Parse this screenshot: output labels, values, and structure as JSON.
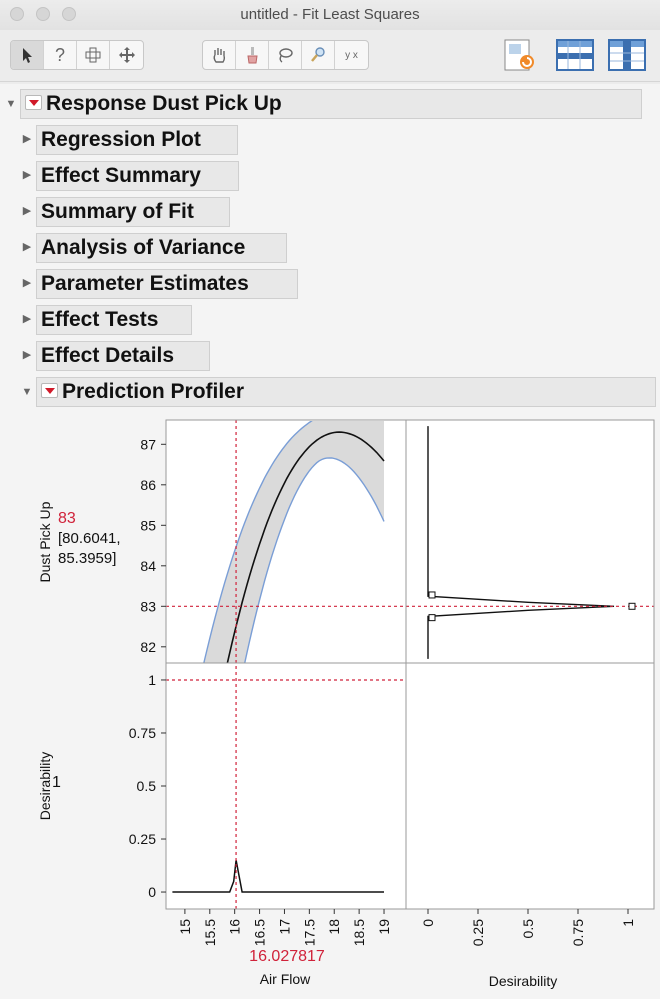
{
  "window": {
    "title": "untitled - Fit Least Squares"
  },
  "toolbar": {
    "tools": [
      "arrow-icon",
      "help-icon",
      "crosshair-icon",
      "move-icon"
    ],
    "tools2": [
      "hand-icon",
      "brush-icon",
      "lasso-icon",
      "magnifier-icon",
      "annotate-icon"
    ],
    "annotate_glyph": "y x"
  },
  "outline": {
    "root": "Response Dust Pick Up",
    "items": [
      "Regression Plot",
      "Effect Summary",
      "Summary of Fit",
      "Analysis of Variance",
      "Parameter Estimates",
      "Effect Tests",
      "Effect Details"
    ],
    "profiler": "Prediction Profiler"
  },
  "profiler": {
    "response": {
      "name": "Dust Pick Up",
      "value": "83",
      "ci_low": "[80.6041,",
      "ci_high": "85.3959]",
      "yticks": [
        82,
        83,
        84,
        85,
        86,
        87
      ],
      "ylim": [
        81.6,
        87.6
      ],
      "target_y": 83
    },
    "desirability": {
      "name": "Desirability",
      "value": "1",
      "yticks": [
        "0",
        "0.25",
        "0.5",
        "0.75",
        "1"
      ],
      "ylim": [
        -0.08,
        1.08
      ]
    },
    "factor": {
      "name": "Air Flow",
      "value": "16.027817",
      "current_x": 16.027817,
      "xticks": [
        "15",
        "15.5",
        "16",
        "16.5",
        "17",
        "17.5",
        "18",
        "18.5",
        "19"
      ],
      "xlim": [
        14.5,
        19.1
      ]
    },
    "desirability_axis": {
      "name": "Desirability",
      "ticks": [
        "0",
        "0.25",
        "0.5",
        "0.75",
        "1"
      ]
    },
    "colors": {
      "accent": "#d0223a",
      "band": "#dadada",
      "band_edge": "#7a9ed6"
    }
  }
}
